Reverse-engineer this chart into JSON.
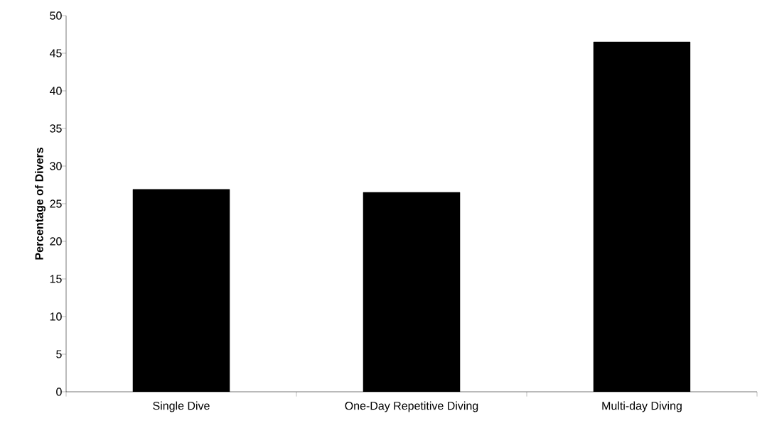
{
  "chart_data": {
    "type": "bar",
    "ylabel": "Percentage of Divers",
    "categories": [
      "Single Dive",
      "One-Day Repetitive Diving",
      "Multi-day Diving"
    ],
    "values": [
      26.9,
      26.5,
      46.5
    ],
    "color": "#000000",
    "ylim": [
      0,
      50
    ],
    "yticks": [
      0,
      5,
      10,
      15,
      20,
      25,
      30,
      35,
      40,
      45,
      50
    ],
    "grid": false
  }
}
